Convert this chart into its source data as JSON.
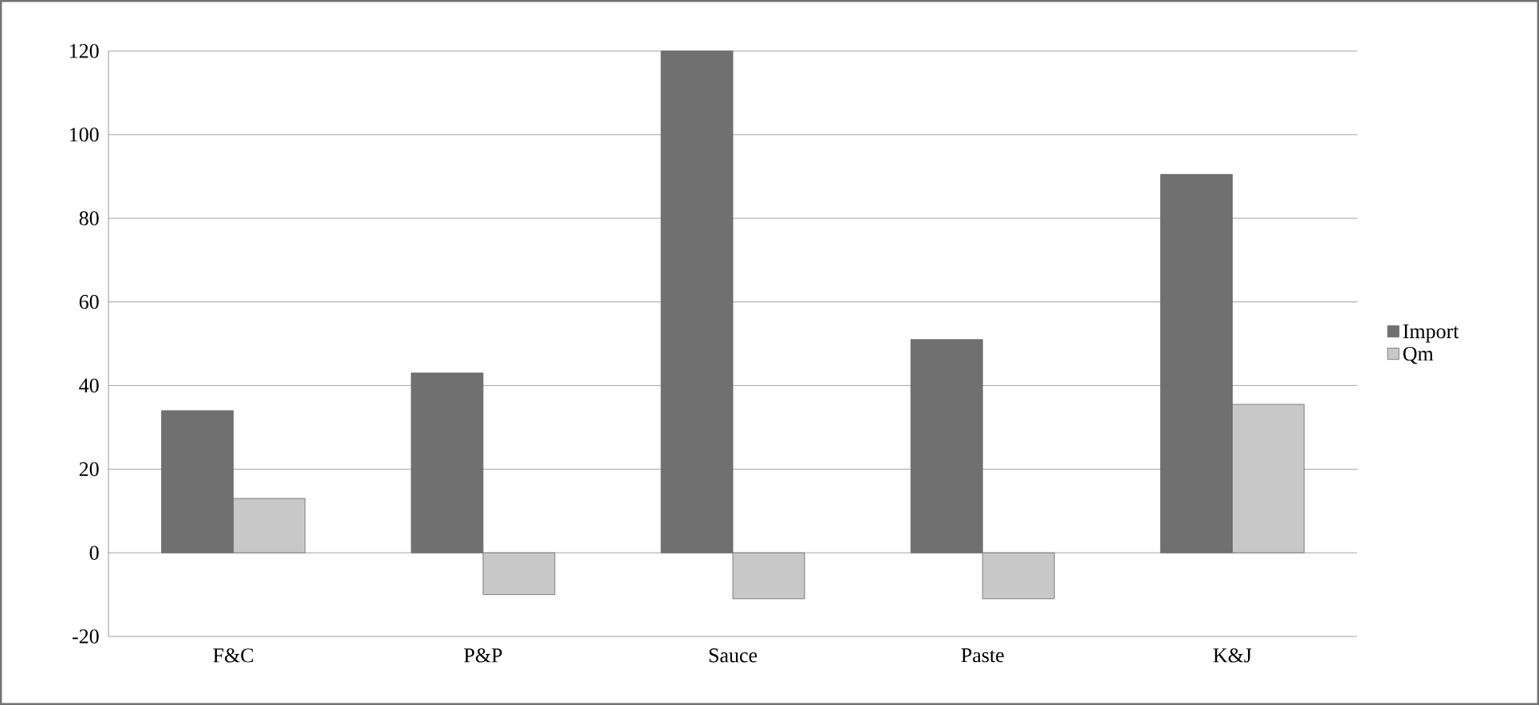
{
  "chart_data": {
    "type": "bar",
    "categories": [
      "F&C",
      "P&P",
      "Sauce",
      "Paste",
      "K&J"
    ],
    "series": [
      {
        "name": "Import",
        "color": "#707070",
        "values": [
          34,
          43,
          120,
          51,
          90.5
        ]
      },
      {
        "name": "Qm",
        "color": "#c8c8c8",
        "values": [
          13,
          -10,
          -11,
          -11,
          35.5
        ]
      }
    ],
    "ylim": [
      -20,
      120
    ],
    "yticks": [
      -20,
      0,
      20,
      40,
      60,
      80,
      100,
      120
    ],
    "grid": "y",
    "legend": "right"
  }
}
